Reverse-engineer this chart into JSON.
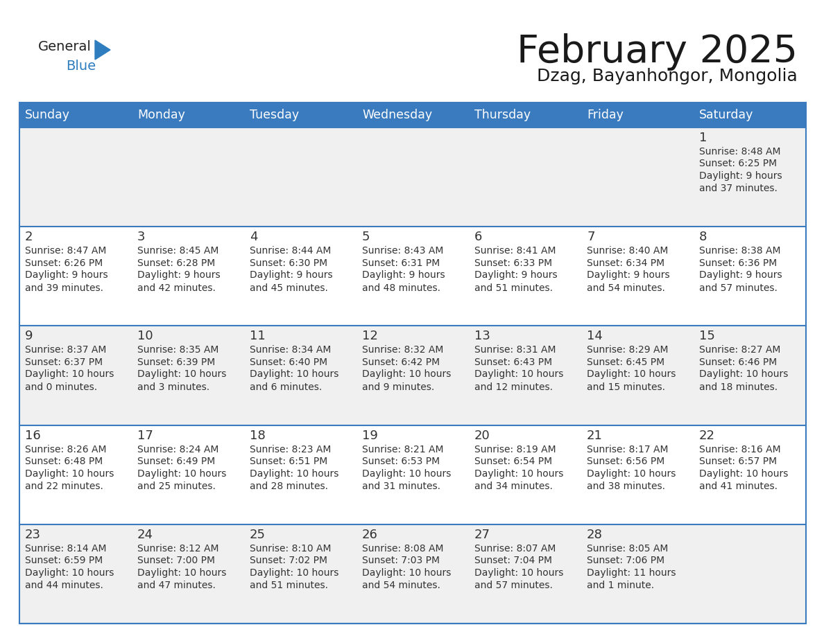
{
  "title": "February 2025",
  "subtitle": "Dzag, Bayanhongor, Mongolia",
  "days_of_week": [
    "Sunday",
    "Monday",
    "Tuesday",
    "Wednesday",
    "Thursday",
    "Friday",
    "Saturday"
  ],
  "header_bg": "#3a7bbf",
  "header_text": "#FFFFFF",
  "cell_bg_odd": "#f0f0f0",
  "cell_bg_even": "#FFFFFF",
  "cell_text": "#333333",
  "day_num_color": "#333333",
  "border_color": "#3a7bbf",
  "title_color": "#1a1a1a",
  "subtitle_color": "#1a1a1a",
  "general_blue_color": "#2E7DBF",
  "calendar_data": [
    [
      null,
      null,
      null,
      null,
      null,
      null,
      {
        "day": 1,
        "sunrise": "8:48 AM",
        "sunset": "6:25 PM",
        "daylight": "9 hours\nand 37 minutes."
      }
    ],
    [
      {
        "day": 2,
        "sunrise": "8:47 AM",
        "sunset": "6:26 PM",
        "daylight": "9 hours\nand 39 minutes."
      },
      {
        "day": 3,
        "sunrise": "8:45 AM",
        "sunset": "6:28 PM",
        "daylight": "9 hours\nand 42 minutes."
      },
      {
        "day": 4,
        "sunrise": "8:44 AM",
        "sunset": "6:30 PM",
        "daylight": "9 hours\nand 45 minutes."
      },
      {
        "day": 5,
        "sunrise": "8:43 AM",
        "sunset": "6:31 PM",
        "daylight": "9 hours\nand 48 minutes."
      },
      {
        "day": 6,
        "sunrise": "8:41 AM",
        "sunset": "6:33 PM",
        "daylight": "9 hours\nand 51 minutes."
      },
      {
        "day": 7,
        "sunrise": "8:40 AM",
        "sunset": "6:34 PM",
        "daylight": "9 hours\nand 54 minutes."
      },
      {
        "day": 8,
        "sunrise": "8:38 AM",
        "sunset": "6:36 PM",
        "daylight": "9 hours\nand 57 minutes."
      }
    ],
    [
      {
        "day": 9,
        "sunrise": "8:37 AM",
        "sunset": "6:37 PM",
        "daylight": "10 hours\nand 0 minutes."
      },
      {
        "day": 10,
        "sunrise": "8:35 AM",
        "sunset": "6:39 PM",
        "daylight": "10 hours\nand 3 minutes."
      },
      {
        "day": 11,
        "sunrise": "8:34 AM",
        "sunset": "6:40 PM",
        "daylight": "10 hours\nand 6 minutes."
      },
      {
        "day": 12,
        "sunrise": "8:32 AM",
        "sunset": "6:42 PM",
        "daylight": "10 hours\nand 9 minutes."
      },
      {
        "day": 13,
        "sunrise": "8:31 AM",
        "sunset": "6:43 PM",
        "daylight": "10 hours\nand 12 minutes."
      },
      {
        "day": 14,
        "sunrise": "8:29 AM",
        "sunset": "6:45 PM",
        "daylight": "10 hours\nand 15 minutes."
      },
      {
        "day": 15,
        "sunrise": "8:27 AM",
        "sunset": "6:46 PM",
        "daylight": "10 hours\nand 18 minutes."
      }
    ],
    [
      {
        "day": 16,
        "sunrise": "8:26 AM",
        "sunset": "6:48 PM",
        "daylight": "10 hours\nand 22 minutes."
      },
      {
        "day": 17,
        "sunrise": "8:24 AM",
        "sunset": "6:49 PM",
        "daylight": "10 hours\nand 25 minutes."
      },
      {
        "day": 18,
        "sunrise": "8:23 AM",
        "sunset": "6:51 PM",
        "daylight": "10 hours\nand 28 minutes."
      },
      {
        "day": 19,
        "sunrise": "8:21 AM",
        "sunset": "6:53 PM",
        "daylight": "10 hours\nand 31 minutes."
      },
      {
        "day": 20,
        "sunrise": "8:19 AM",
        "sunset": "6:54 PM",
        "daylight": "10 hours\nand 34 minutes."
      },
      {
        "day": 21,
        "sunrise": "8:17 AM",
        "sunset": "6:56 PM",
        "daylight": "10 hours\nand 38 minutes."
      },
      {
        "day": 22,
        "sunrise": "8:16 AM",
        "sunset": "6:57 PM",
        "daylight": "10 hours\nand 41 minutes."
      }
    ],
    [
      {
        "day": 23,
        "sunrise": "8:14 AM",
        "sunset": "6:59 PM",
        "daylight": "10 hours\nand 44 minutes."
      },
      {
        "day": 24,
        "sunrise": "8:12 AM",
        "sunset": "7:00 PM",
        "daylight": "10 hours\nand 47 minutes."
      },
      {
        "day": 25,
        "sunrise": "8:10 AM",
        "sunset": "7:02 PM",
        "daylight": "10 hours\nand 51 minutes."
      },
      {
        "day": 26,
        "sunrise": "8:08 AM",
        "sunset": "7:03 PM",
        "daylight": "10 hours\nand 54 minutes."
      },
      {
        "day": 27,
        "sunrise": "8:07 AM",
        "sunset": "7:04 PM",
        "daylight": "10 hours\nand 57 minutes."
      },
      {
        "day": 28,
        "sunrise": "8:05 AM",
        "sunset": "7:06 PM",
        "daylight": "11 hours\nand 1 minute."
      },
      null
    ]
  ]
}
